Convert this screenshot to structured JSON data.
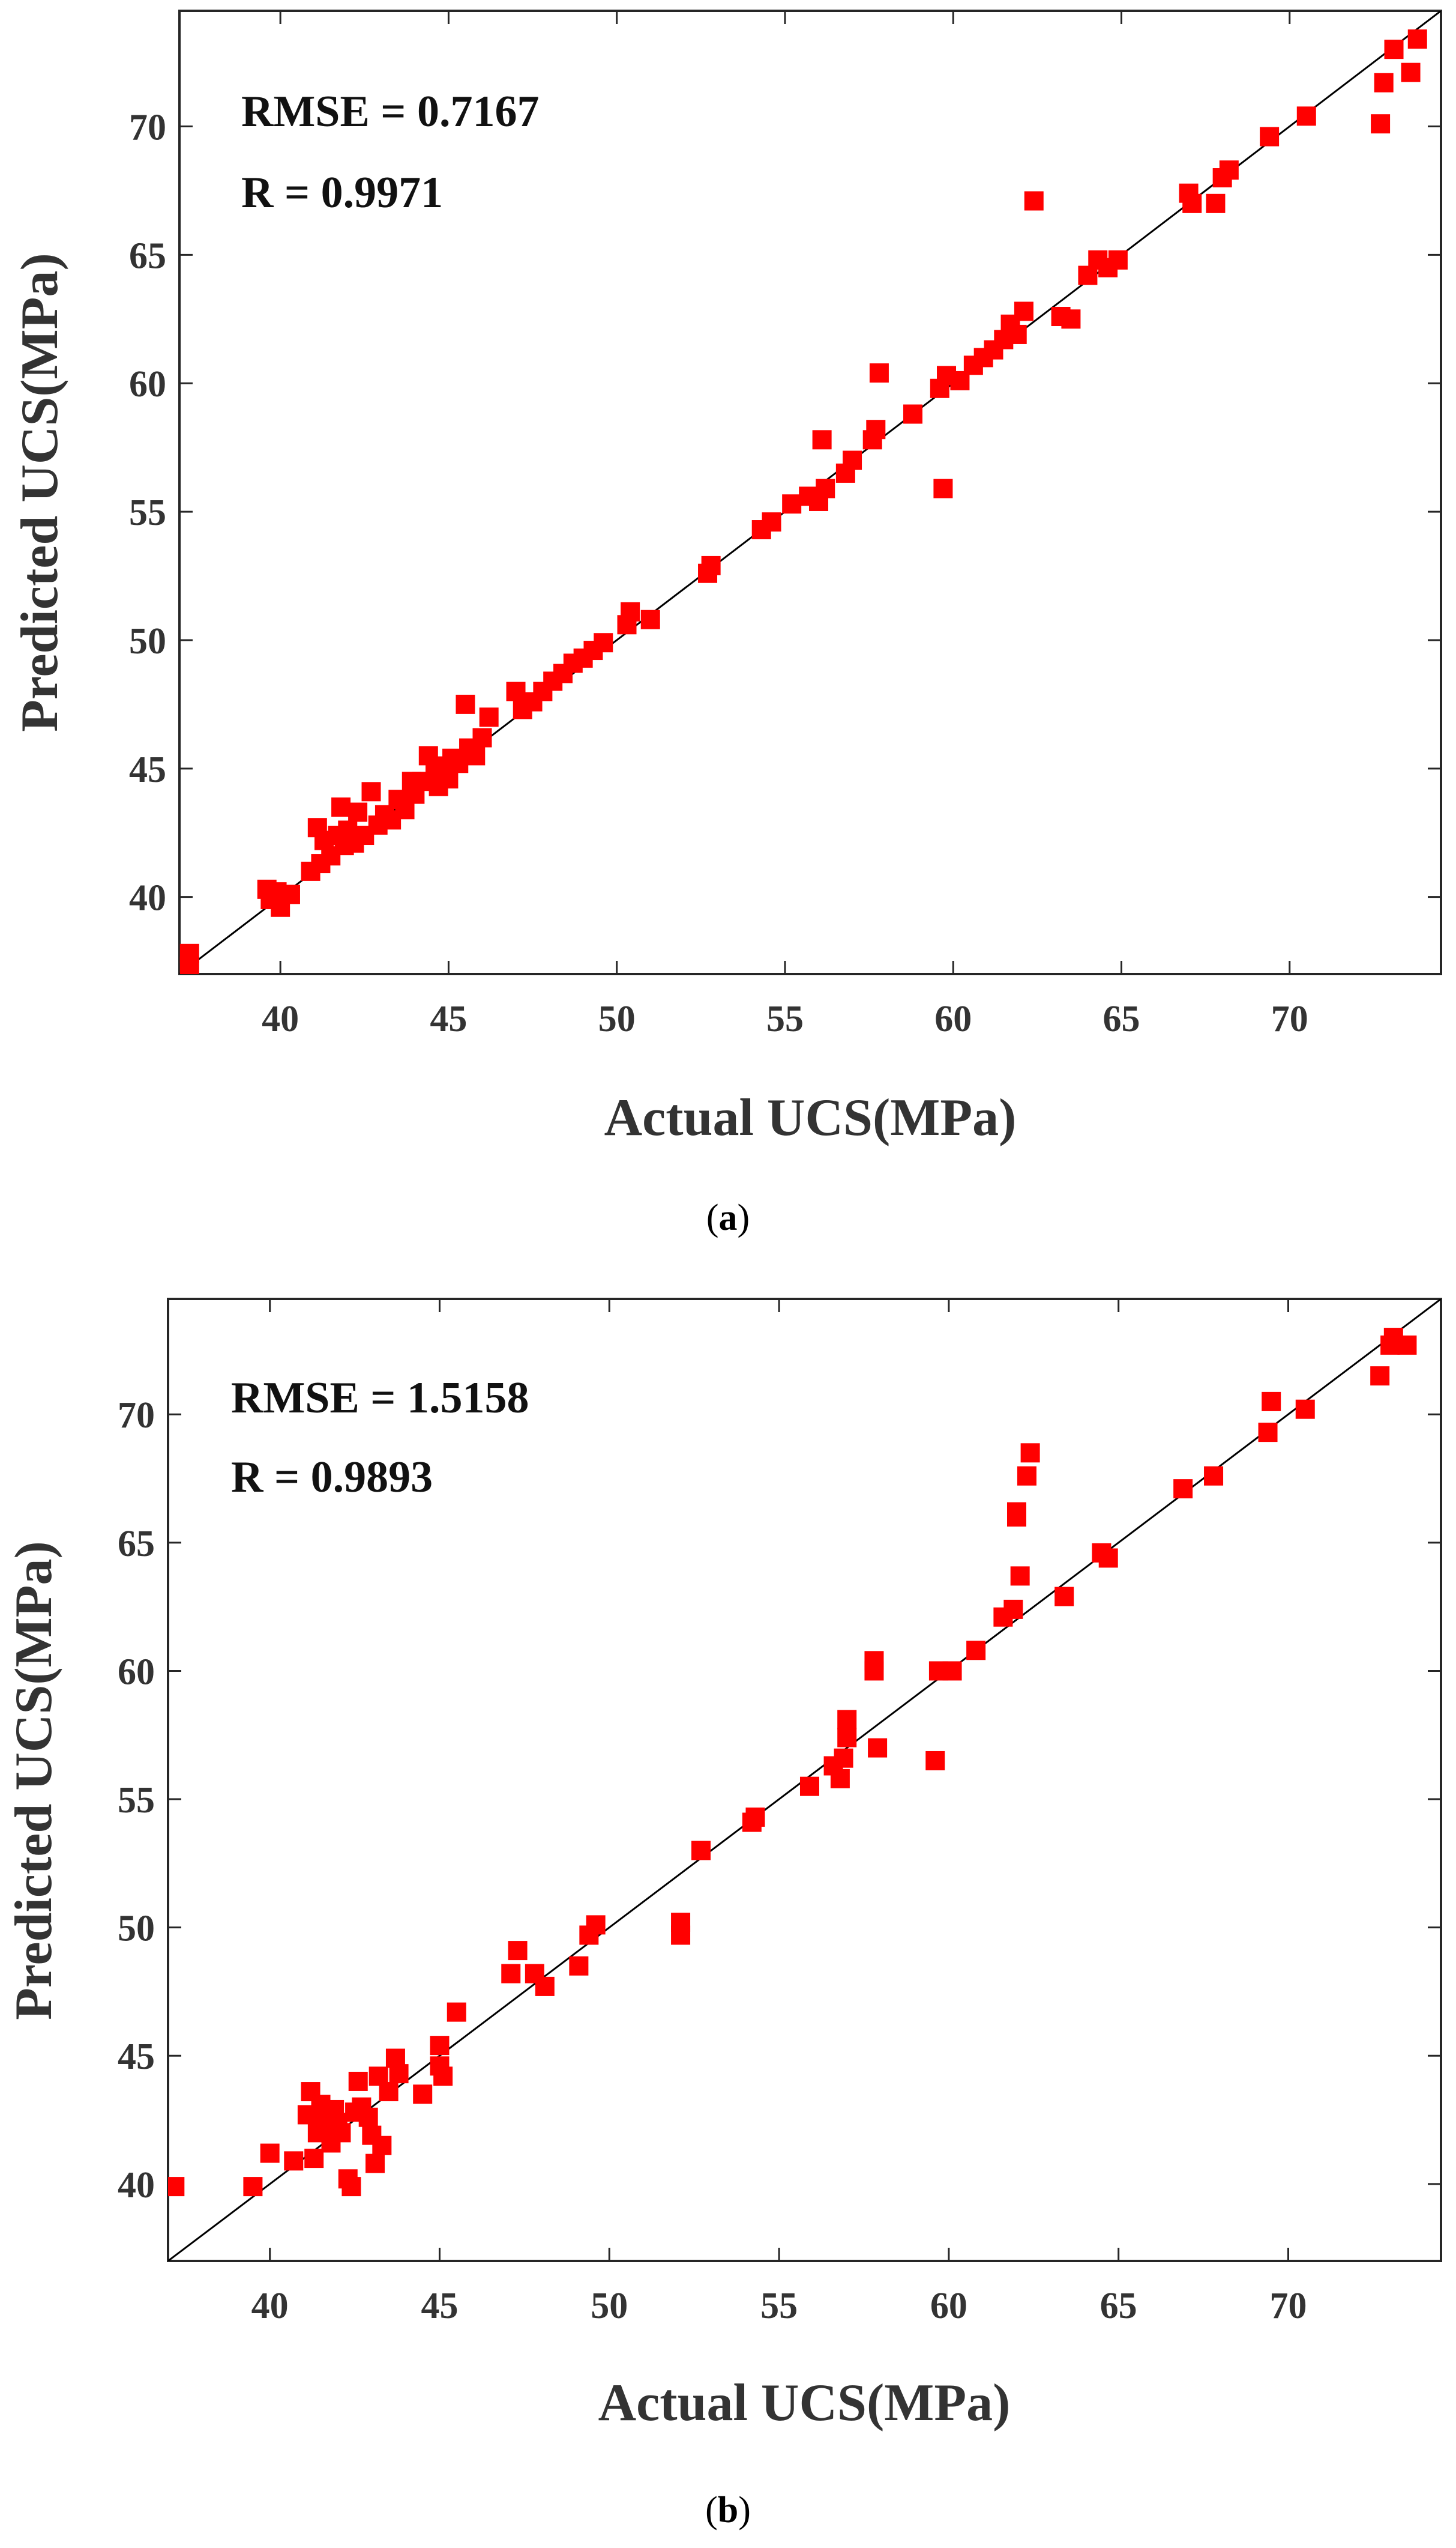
{
  "chart_data": [
    {
      "type": "scatter",
      "panel_label": "a",
      "xlabel": "Actual UCS(MPa)",
      "ylabel": "Predicted UCS(MPa)",
      "xlim": [
        37,
        74.5
      ],
      "ylim": [
        37,
        74.5
      ],
      "xticks": [
        40,
        45,
        50,
        55,
        60,
        65,
        70
      ],
      "yticks": [
        40,
        45,
        50,
        55,
        60,
        65,
        70
      ],
      "xtick_labels": [
        "40",
        "45",
        "50",
        "55",
        "60",
        "65",
        "70"
      ],
      "ytick_labels": [
        "40",
        "45",
        "50",
        "55",
        "60",
        "65",
        "70"
      ],
      "grid": false,
      "reference_line": "y = x",
      "marker_color": "#ff0000",
      "annotations": [
        "RMSE = 0.7167",
        "R = 0.9971"
      ],
      "x": [
        37.3,
        37.3,
        39.6,
        39.7,
        39.9,
        40.0,
        40.3,
        40.9,
        41.1,
        41.2,
        41.3,
        41.5,
        41.7,
        41.8,
        41.9,
        42.0,
        42.2,
        42.3,
        42.5,
        42.7,
        42.9,
        43.1,
        43.3,
        43.5,
        43.7,
        43.9,
        44.0,
        44.2,
        44.4,
        44.6,
        44.7,
        44.9,
        45.0,
        45.1,
        45.3,
        45.5,
        45.6,
        45.8,
        46.0,
        46.2,
        47.0,
        47.2,
        47.5,
        47.8,
        48.1,
        48.4,
        48.7,
        49.0,
        49.3,
        49.6,
        50.3,
        50.4,
        51.0,
        52.7,
        52.8,
        54.3,
        54.6,
        55.2,
        55.7,
        56.0,
        56.1,
        56.2,
        56.8,
        57.0,
        57.6,
        57.7,
        57.8,
        58.8,
        59.6,
        59.7,
        59.8,
        60.2,
        60.6,
        60.9,
        61.2,
        61.5,
        61.7,
        61.9,
        62.1,
        62.4,
        63.2,
        63.5,
        64.0,
        64.3,
        64.6,
        64.9,
        67.0,
        67.1,
        67.8,
        68.0,
        68.2,
        69.4,
        70.5,
        72.7,
        72.8,
        73.1,
        73.6,
        73.8
      ],
      "y": [
        37.3,
        37.8,
        40.3,
        39.9,
        40.2,
        39.6,
        40.1,
        41.0,
        42.7,
        41.3,
        42.2,
        41.6,
        42.4,
        43.5,
        42.0,
        42.6,
        42.1,
        43.3,
        42.4,
        44.1,
        42.8,
        43.2,
        43.0,
        43.8,
        43.4,
        44.5,
        44.0,
        44.5,
        45.5,
        44.8,
        44.3,
        45.1,
        44.6,
        45.4,
        45.2,
        47.5,
        45.8,
        45.5,
        46.2,
        47.0,
        48.0,
        47.3,
        47.6,
        48.0,
        48.4,
        48.7,
        49.1,
        49.3,
        49.6,
        49.9,
        50.6,
        51.1,
        50.8,
        52.6,
        52.9,
        54.3,
        54.6,
        55.3,
        55.6,
        55.4,
        57.8,
        55.9,
        56.5,
        57.0,
        57.8,
        58.2,
        60.4,
        58.8,
        59.8,
        55.9,
        60.3,
        60.1,
        60.7,
        61.0,
        61.3,
        61.7,
        62.3,
        61.9,
        62.8,
        67.1,
        62.6,
        62.5,
        64.2,
        64.8,
        64.5,
        64.8,
        67.4,
        67.0,
        67.0,
        68.0,
        68.3,
        69.6,
        70.4,
        70.1,
        71.7,
        73.0,
        72.1,
        73.4
      ]
    },
    {
      "type": "scatter",
      "panel_label": "b",
      "xlabel": "Actual UCS(MPa)",
      "ylabel": "Predicted UCS(MPa)",
      "xlim": [
        37,
        74.5
      ],
      "ylim": [
        37,
        74.5
      ],
      "xticks": [
        40,
        45,
        50,
        55,
        60,
        65,
        70
      ],
      "yticks": [
        40,
        45,
        50,
        55,
        60,
        65,
        70
      ],
      "xtick_labels": [
        "40",
        "45",
        "50",
        "55",
        "60",
        "65",
        "70"
      ],
      "ytick_labels": [
        "40",
        "45",
        "50",
        "55",
        "60",
        "65",
        "70"
      ],
      "grid": false,
      "reference_line": "y = x",
      "marker_color": "#ff0000",
      "annotations": [
        "RMSE = 1.5158",
        "R = 0.9893"
      ],
      "x": [
        37.2,
        39.5,
        40.0,
        40.7,
        41.1,
        41.2,
        41.3,
        41.4,
        41.5,
        41.6,
        41.7,
        41.8,
        41.9,
        42.0,
        42.1,
        42.3,
        42.4,
        42.5,
        42.6,
        42.7,
        42.9,
        43.0,
        43.1,
        43.2,
        43.3,
        43.5,
        43.7,
        43.8,
        44.5,
        45.0,
        45.0,
        45.1,
        45.5,
        47.1,
        47.3,
        47.8,
        48.1,
        49.1,
        49.4,
        49.6,
        52.1,
        52.1,
        52.7,
        54.2,
        54.3,
        55.9,
        56.6,
        56.8,
        56.9,
        57.0,
        57.0,
        57.8,
        57.8,
        57.9,
        59.6,
        59.7,
        60.1,
        60.8,
        61.6,
        61.9,
        62.0,
        62.0,
        62.1,
        62.3,
        62.4,
        63.4,
        64.5,
        64.7,
        66.9,
        67.8,
        69.4,
        69.5,
        70.5,
        72.7,
        73.0,
        73.1,
        73.5
      ],
      "y": [
        39.9,
        39.9,
        41.2,
        40.9,
        42.7,
        43.6,
        41.0,
        42.0,
        43.1,
        42.5,
        42.2,
        41.6,
        42.9,
        42.4,
        42.0,
        40.2,
        39.9,
        42.8,
        44.0,
        43.0,
        42.6,
        41.9,
        40.8,
        44.2,
        41.5,
        43.6,
        44.9,
        44.3,
        43.5,
        45.4,
        44.6,
        44.2,
        46.7,
        48.2,
        49.1,
        48.2,
        47.7,
        48.5,
        49.7,
        50.1,
        49.7,
        50.2,
        53.0,
        54.1,
        54.3,
        55.5,
        56.3,
        55.8,
        56.6,
        58.1,
        57.4,
        60.4,
        60.0,
        57.0,
        56.5,
        60.0,
        60.0,
        60.8,
        62.1,
        62.4,
        66.0,
        66.2,
        63.7,
        67.6,
        68.5,
        62.9,
        64.6,
        64.4,
        67.1,
        67.6,
        69.3,
        70.5,
        70.2,
        71.5,
        72.7,
        73.0,
        72.7
      ]
    }
  ],
  "captions": {
    "a": {
      "open": "(",
      "letter": "a",
      "close": ")"
    },
    "b": {
      "open": "(",
      "letter": "b",
      "close": ")"
    }
  }
}
